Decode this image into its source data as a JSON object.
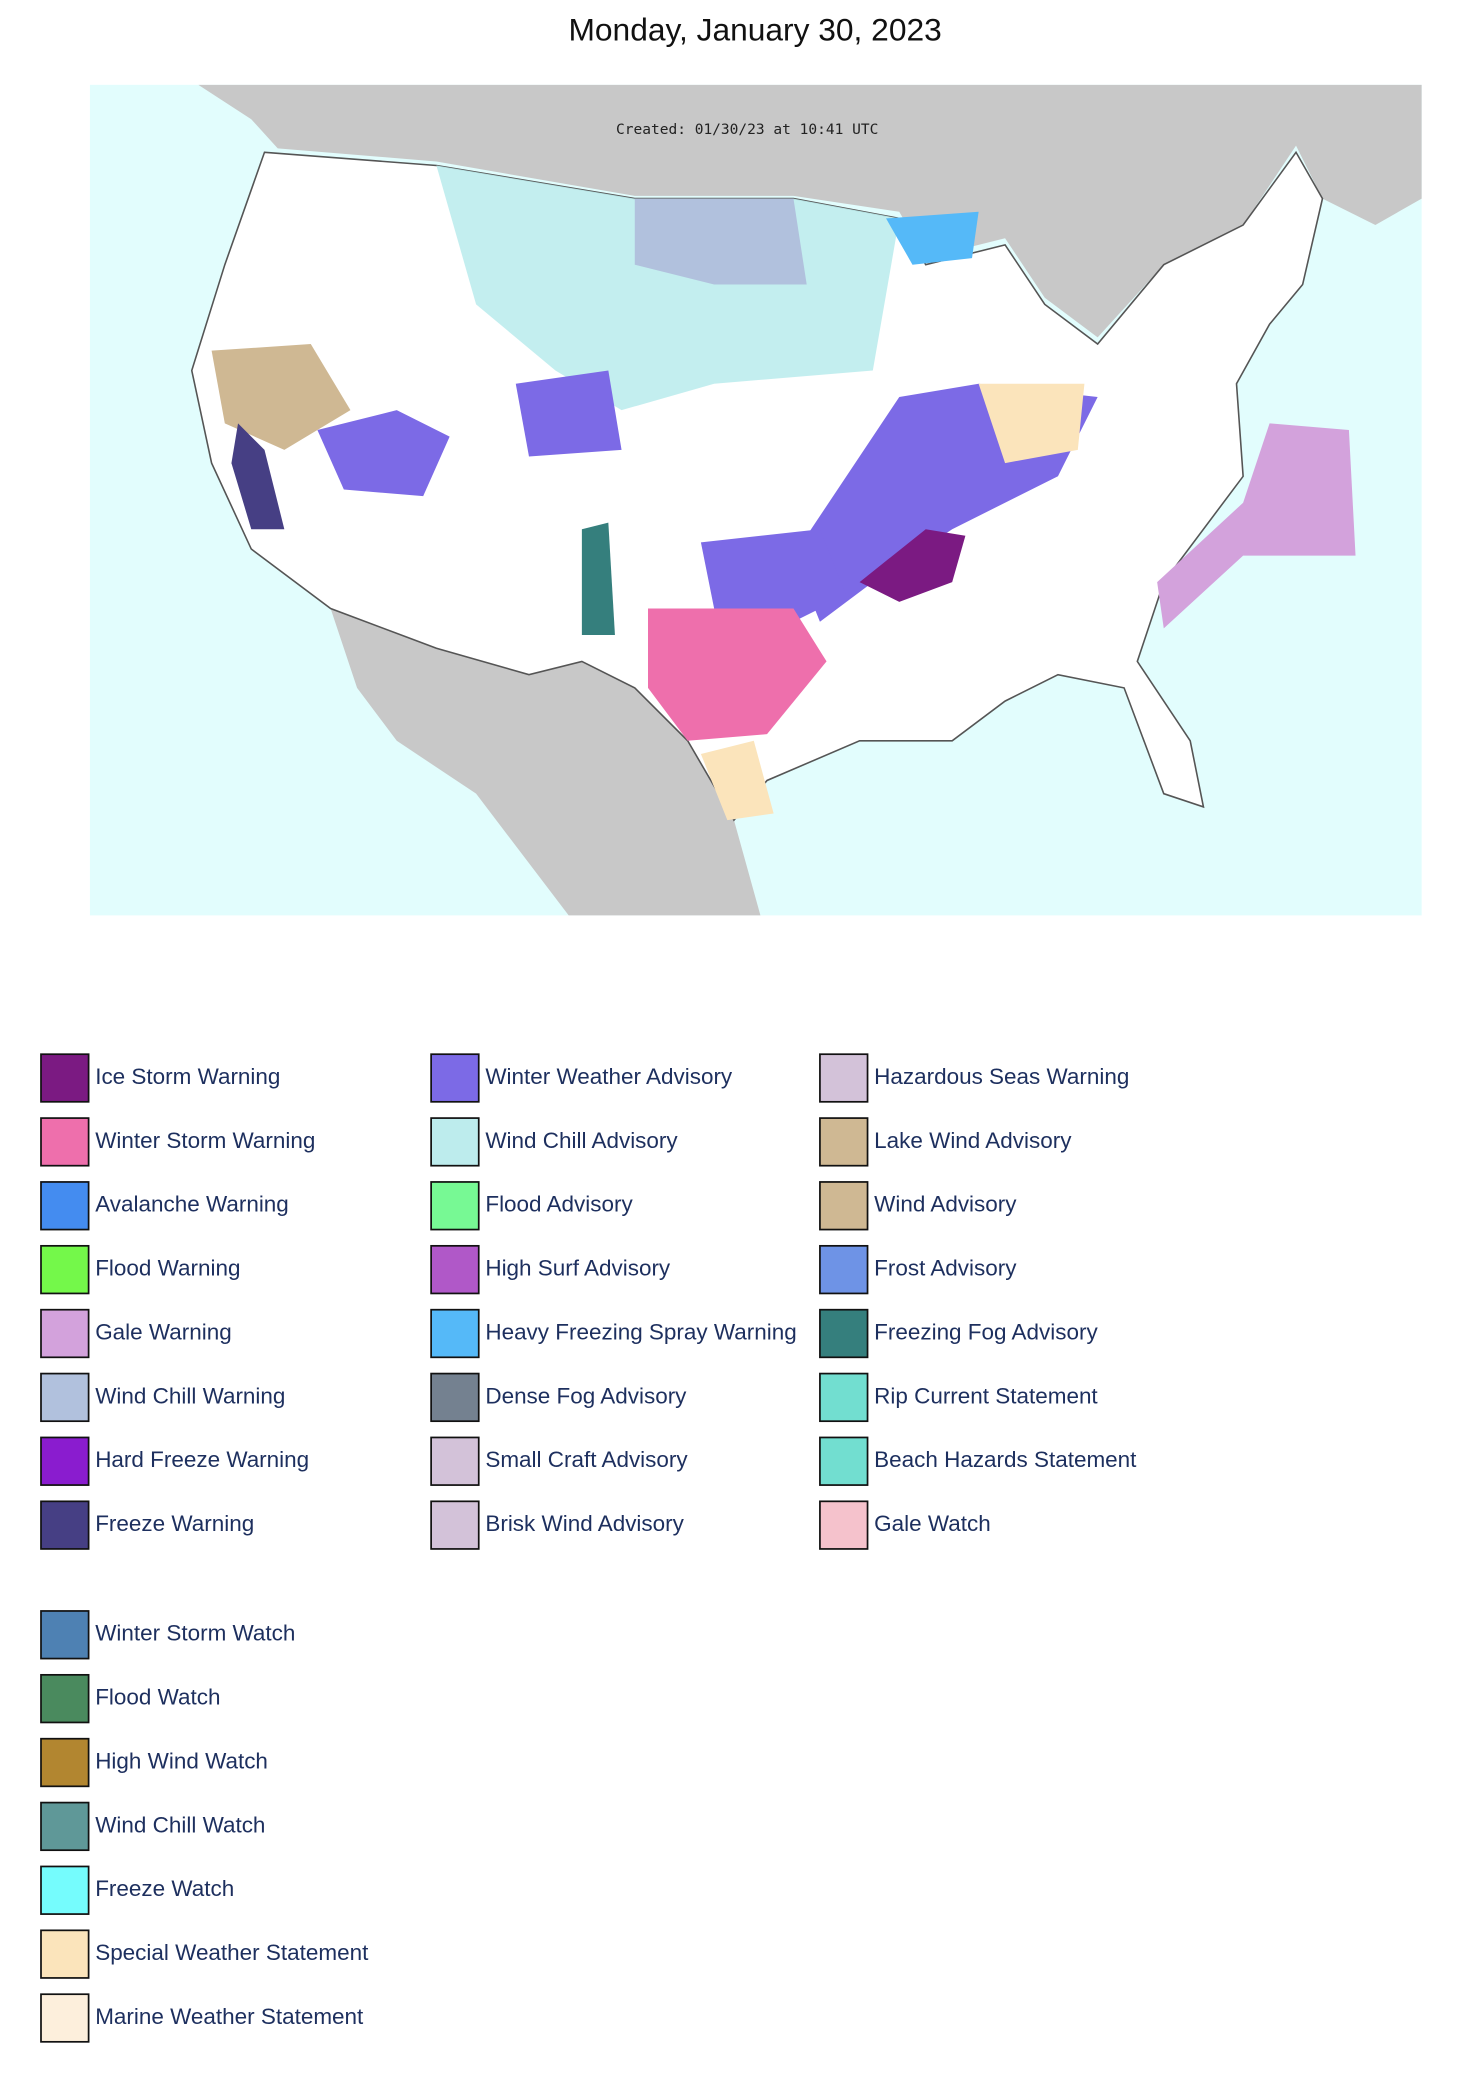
{
  "header": {
    "title": "Monday, January 30, 2023"
  },
  "map": {
    "created_label": "Created: 01/30/23 at 10:41 UTC"
  },
  "legend": {
    "columns": [
      [
        {
          "label": "Ice Storm Warning",
          "color": "#7b1a82"
        },
        {
          "label": "Winter Storm Warning",
          "color": "#ee6fac"
        },
        {
          "label": "Avalanche Warning",
          "color": "#448cf0"
        },
        {
          "label": "Flood Warning",
          "color": "#74f84a"
        },
        {
          "label": "Gale Warning",
          "color": "#d3a2dc"
        },
        {
          "label": "Wind Chill Warning",
          "color": "#b1c1dd"
        },
        {
          "label": "Hard Freeze Warning",
          "color": "#8a1ccf"
        },
        {
          "label": "Freeze Warning",
          "color": "#463f84"
        }
      ],
      [
        {
          "label": "Winter Weather Advisory",
          "color": "#7c6ae6"
        },
        {
          "label": "Wind Chill Advisory",
          "color": "#bdeced"
        },
        {
          "label": "Flood Advisory",
          "color": "#77f994"
        },
        {
          "label": "High Surf Advisory",
          "color": "#b058c8"
        },
        {
          "label": "Heavy Freezing Spray Warning",
          "color": "#55b9f8"
        },
        {
          "label": "Dense Fog Advisory",
          "color": "#748190"
        },
        {
          "label": "Small Craft Advisory",
          "color": "#d3c2d9"
        },
        {
          "label": "Brisk Wind Advisory",
          "color": "#d3c2d9"
        }
      ],
      [
        {
          "label": "Hazardous Seas Warning",
          "color": "#d3c2d9"
        },
        {
          "label": "Lake Wind Advisory",
          "color": "#cfb893"
        },
        {
          "label": "Wind Advisory",
          "color": "#cfb893"
        },
        {
          "label": "Frost Advisory",
          "color": "#6e93e6"
        },
        {
          "label": "Freezing Fog Advisory",
          "color": "#357f7d"
        },
        {
          "label": "Rip Current Statement",
          "color": "#72ded0"
        },
        {
          "label": "Beach Hazards Statement",
          "color": "#72ded0"
        },
        {
          "label": "Gale Watch",
          "color": "#f5c2cc"
        }
      ]
    ],
    "watches": [
      {
        "label": "Winter Storm Watch",
        "color": "#4e81b3"
      },
      {
        "label": "Flood Watch",
        "color": "#4a8a5e"
      },
      {
        "label": "High Wind Watch",
        "color": "#b28630"
      },
      {
        "label": "Wind Chill Watch",
        "color": "#5f9898"
      },
      {
        "label": "Freeze Watch",
        "color": "#75fcfd"
      },
      {
        "label": "Special Weather Statement",
        "color": "#fbe4bb"
      },
      {
        "label": "Marine Weather Statement",
        "color": "#fdefdc"
      }
    ]
  }
}
